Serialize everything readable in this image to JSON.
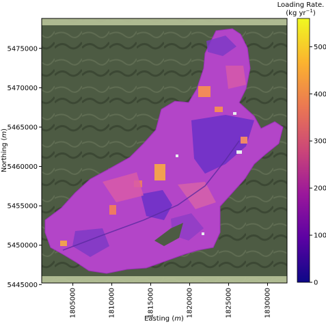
{
  "chart_data": {
    "type": "heatmap",
    "map_kind": "raster overlay on satellite imagery",
    "xlabel": "Easting",
    "xlabel_unit": "m",
    "ylabel": "Northing",
    "ylabel_unit": "m",
    "xlim": [
      1801000,
      1832500
    ],
    "ylim": [
      5445200,
      5478800
    ],
    "x_ticks": [
      1805000,
      1810000,
      1815000,
      1820000,
      1825000,
      1830000
    ],
    "x_tick_labels": [
      "1805000",
      "1810000",
      "1815000",
      "1820000",
      "1825000",
      "1830000"
    ],
    "y_ticks": [
      5445000,
      5450000,
      5455000,
      5460000,
      5465000,
      5470000,
      5475000
    ],
    "y_tick_labels": [
      "5445000",
      "5450000",
      "5455000",
      "5460000",
      "5465000",
      "5470000",
      "5475000"
    ],
    "colorbar": {
      "title_line1": "Loading Rate.",
      "title_line2": "(kg yr",
      "title_sup": "−1",
      "title_close": ")",
      "range": [
        0,
        560
      ],
      "ticks": [
        0,
        100,
        200,
        300,
        400,
        500
      ],
      "tick_labels": [
        "0",
        "100",
        "200",
        "300",
        "400",
        "500"
      ],
      "colormap": "plasma",
      "stops": [
        "#0d0887",
        "#5b02a3",
        "#9a179b",
        "#cb4678",
        "#eb7852",
        "#fbb32f",
        "#f0f921"
      ]
    },
    "dominant_range": [
      100,
      250
    ],
    "grid": false,
    "legend": "none"
  },
  "colors": {
    "background_terrain": "#4a5840",
    "strip_light": "#b9c49a",
    "catchment_base": "#b345c8",
    "low_patch": "#6a30c8",
    "high_patch": "#f28a5a"
  }
}
